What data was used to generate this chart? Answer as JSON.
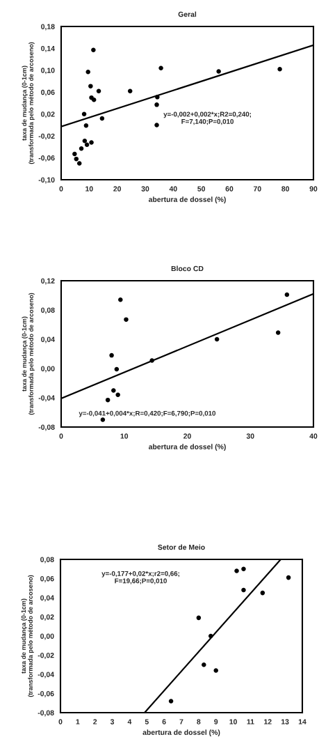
{
  "chart_data": [
    {
      "type": "scatter",
      "title": "Geral",
      "xlabel": "abertura de dossel (%)",
      "ylabel": "taxa de mudança (0-1cm)\n(transformada pelo método de arcoseno)",
      "xlim": [
        0,
        90
      ],
      "xticks": [
        0,
        10,
        20,
        30,
        40,
        50,
        60,
        70,
        80,
        90
      ],
      "ylim": [
        -0.1,
        0.18
      ],
      "yticks": [
        {
          "value": -0.1,
          "label": "-0,10"
        },
        {
          "value": -0.06,
          "label": "-0,06"
        },
        {
          "value": -0.02,
          "label": "-0,02"
        },
        {
          "value": 0.02,
          "label": "0,02"
        },
        {
          "value": 0.06,
          "label": "0,06"
        },
        {
          "value": 0.1,
          "label": "0,10"
        },
        {
          "value": 0.14,
          "label": "0,14"
        },
        {
          "value": 0.18,
          "label": "0,18"
        }
      ],
      "grid": false,
      "annotations": [
        "y=-0,002+0,002*x;R2=0,240;\nF=7,140;P=0,010"
      ],
      "series": [
        {
          "marker": "circle",
          "color": "#000000",
          "x": [
            4.8,
            5.4,
            6.5,
            7.2,
            8.2,
            8.4,
            8.9,
            9.2,
            9.6,
            10.5,
            10.8,
            10.8,
            11.5,
            11.7,
            13.4,
            14.6,
            24.6,
            34.1,
            34.3,
            34.1,
            35.6,
            56.2,
            78.0
          ],
          "values": [
            -0.053,
            -0.062,
            -0.07,
            -0.043,
            0.02,
            -0.029,
            -0.001,
            -0.036,
            0.097,
            0.071,
            -0.032,
            0.05,
            0.137,
            0.046,
            0.062,
            0.012,
            0.062,
            0.037,
            0.051,
            0.0,
            0.104,
            0.098,
            0.102
          ]
        },
        {
          "type": "line",
          "color": "#000000",
          "x": [
            0,
            90
          ],
          "values": [
            -0.003,
            0.146
          ]
        }
      ]
    },
    {
      "type": "scatter",
      "title": "Bloco CD",
      "xlabel": "abertura de dossel (%)",
      "ylabel": "taxa de mudança (0-1cm)\n(transformada pelo método de arcoseno)",
      "xlim": [
        0,
        40
      ],
      "xticks": [
        0,
        10,
        20,
        30,
        40
      ],
      "ylim": [
        -0.08,
        0.12
      ],
      "yticks": [
        {
          "value": -0.08,
          "label": "-0,08"
        },
        {
          "value": -0.04,
          "label": "-0,04"
        },
        {
          "value": 0.0,
          "label": "0,00"
        },
        {
          "value": 0.04,
          "label": "0,04"
        },
        {
          "value": 0.08,
          "label": "0,08"
        },
        {
          "value": 0.12,
          "label": "0,12"
        }
      ],
      "grid": false,
      "annotations": [
        "y=-0,041+0,004*x;R=0,420;F=6,790;P=0,010"
      ],
      "series": [
        {
          "marker": "circle",
          "color": "#000000",
          "x": [
            6.6,
            7.4,
            8.0,
            8.3,
            8.8,
            9.0,
            9.4,
            10.3,
            14.4,
            24.7,
            34.4,
            35.8
          ],
          "values": [
            -0.07,
            -0.043,
            0.018,
            -0.03,
            -0.001,
            -0.036,
            0.094,
            0.067,
            0.011,
            0.04,
            0.049,
            0.101
          ]
        },
        {
          "type": "line",
          "color": "#000000",
          "x": [
            0,
            40
          ],
          "values": [
            -0.041,
            0.102
          ]
        }
      ]
    },
    {
      "type": "scatter",
      "title": "Setor de Meio",
      "xlabel": "abertura de dossel (%)",
      "ylabel": "taxa de mudança (0-1cm)\n(transformada pelo método de arcoseno)",
      "xlim": [
        0,
        14
      ],
      "xticks": [
        0,
        1,
        2,
        3,
        4,
        5,
        6,
        7,
        8,
        9,
        10,
        11,
        12,
        13,
        14
      ],
      "ylim": [
        -0.08,
        0.08
      ],
      "yticks": [
        {
          "value": -0.08,
          "label": "-0,08"
        },
        {
          "value": -0.06,
          "label": "-0,06"
        },
        {
          "value": -0.04,
          "label": "-0,04"
        },
        {
          "value": -0.02,
          "label": "-0,02"
        },
        {
          "value": 0.0,
          "label": "0,00"
        },
        {
          "value": 0.02,
          "label": "0,02"
        },
        {
          "value": 0.04,
          "label": "0,04"
        },
        {
          "value": 0.06,
          "label": "0,06"
        },
        {
          "value": 0.08,
          "label": "0,08"
        }
      ],
      "grid": false,
      "annotations": [
        "y=-0,177+0,02*x;r2=0,66;\nF=19,66;P=0,010"
      ],
      "series": [
        {
          "marker": "circle",
          "color": "#000000",
          "x": [
            6.4,
            8.0,
            8.3,
            8.7,
            9.0,
            10.2,
            10.6,
            10.6,
            11.7,
            13.2
          ],
          "values": [
            -0.068,
            0.019,
            -0.03,
            0.0,
            -0.036,
            0.068,
            0.07,
            0.048,
            0.045,
            0.061
          ]
        },
        {
          "type": "line",
          "color": "#000000",
          "x": [
            4.87,
            12.75
          ],
          "values": [
            -0.08,
            0.08
          ]
        }
      ]
    }
  ]
}
